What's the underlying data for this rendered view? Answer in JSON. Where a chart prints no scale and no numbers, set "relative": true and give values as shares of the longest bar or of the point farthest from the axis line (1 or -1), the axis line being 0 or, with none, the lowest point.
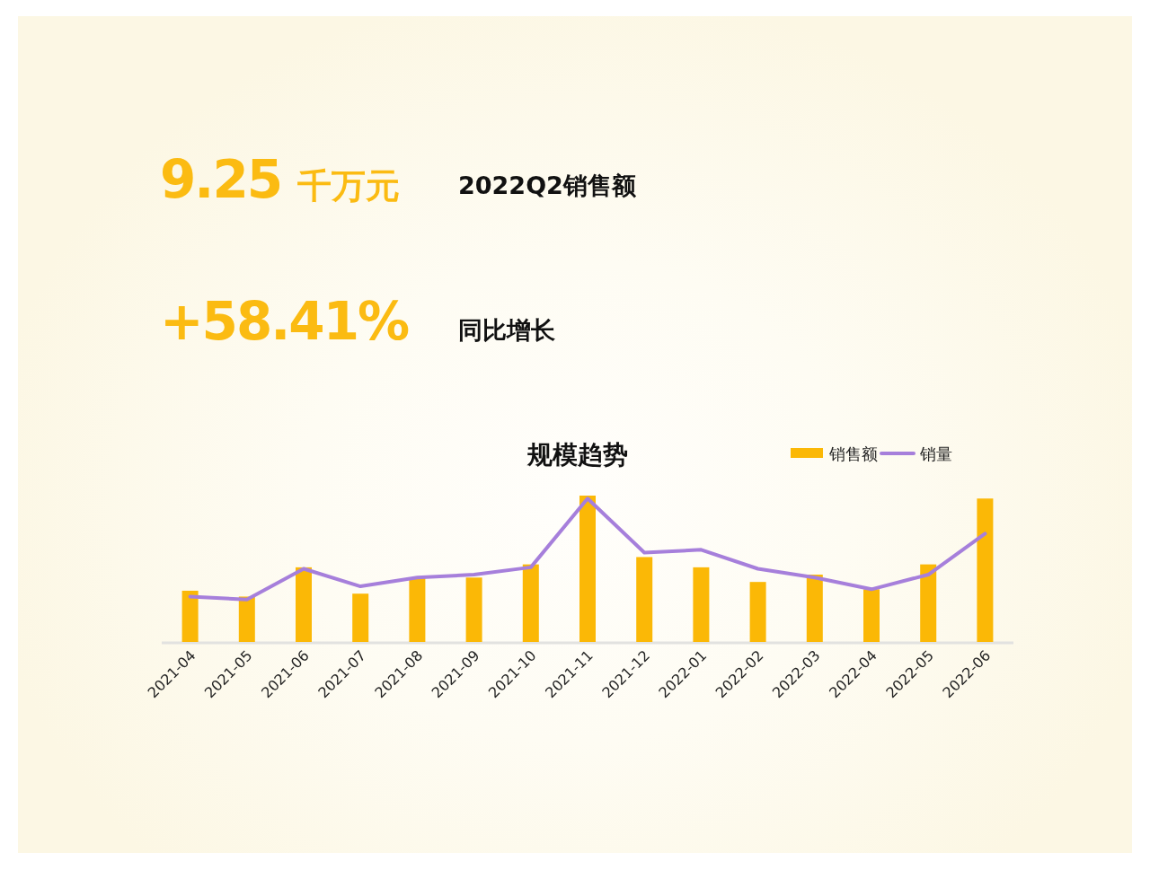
{
  "chart_data": [
    {
      "type": "other",
      "annotations": [
        "9.25 千万元",
        "2022Q2销售额",
        "+58.41%",
        "同比增长"
      ]
    },
    {
      "type": "bar",
      "title": "规模趋势",
      "categories": [
        "2021-04",
        "2021-05",
        "2021-06",
        "2021-07",
        "2021-08",
        "2021-09",
        "2021-10",
        "2021-11",
        "2021-12",
        "2022-01",
        "2022-02",
        "2022-03",
        "2022-04",
        "2022-05",
        "2022-06"
      ],
      "series": [
        {
          "name": "销售额",
          "type": "bar",
          "color": "#fbb806",
          "values": [
            0.35,
            0.31,
            0.51,
            0.33,
            0.44,
            0.44,
            0.53,
            1,
            0.58,
            0.51,
            0.41,
            0.46,
            0.36,
            0.53,
            0.98
          ]
        },
        {
          "name": "销量",
          "type": "line",
          "color": "#a67fdb",
          "values": [
            0.31,
            0.29,
            0.5,
            0.38,
            0.44,
            0.46,
            0.51,
            0.98,
            0.61,
            0.63,
            0.5,
            0.44,
            0.36,
            0.46,
            0.74
          ]
        }
      ],
      "relative": true,
      "legend": "top right"
    }
  ]
}
